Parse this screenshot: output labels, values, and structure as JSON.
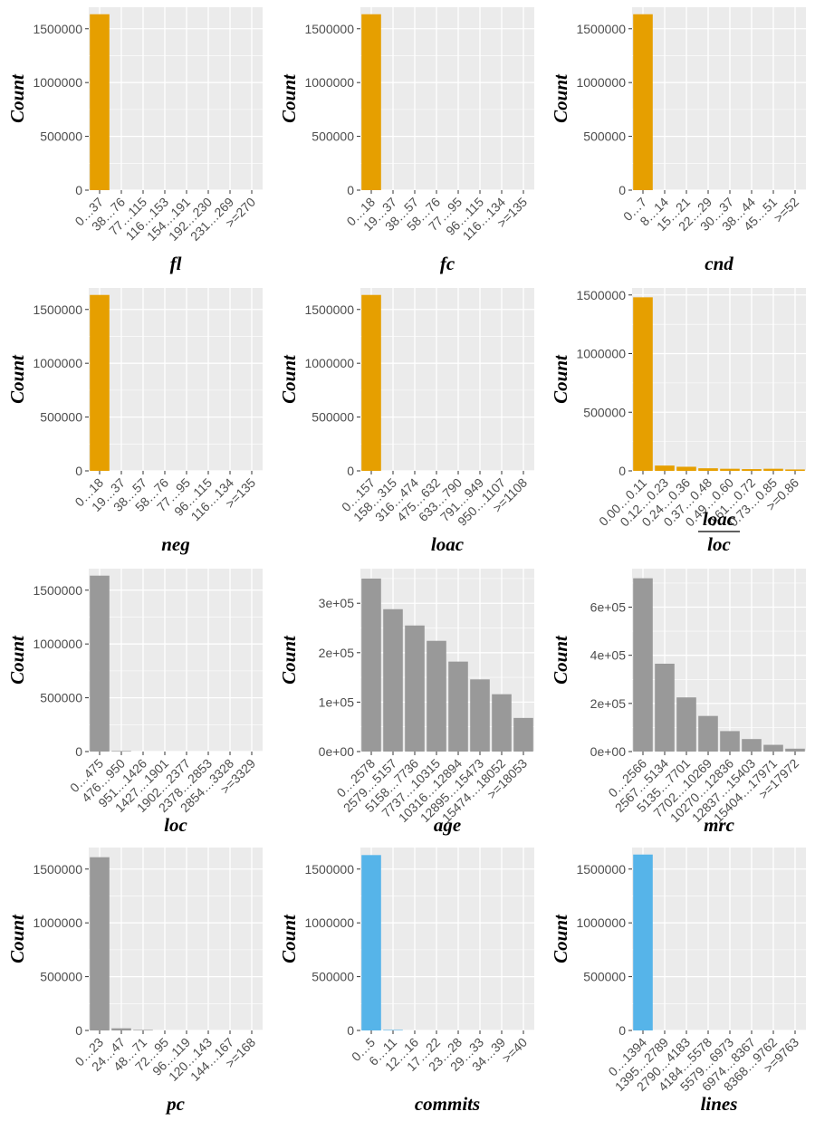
{
  "colors": {
    "orange": "#E69F00",
    "grey": "#999999",
    "blue": "#56B4E9",
    "panel_bg": "#EBEBEB",
    "grid": "#FFFFFF"
  },
  "chart_data": [
    {
      "type": "bar",
      "xlabel": "fl",
      "ylabel": "Count",
      "color": "#E69F00",
      "categories": [
        "0…37",
        "38…76",
        "77…115",
        "116…153",
        "154…191",
        "192…230",
        "231…269",
        ">=270"
      ],
      "values": [
        1635000,
        0,
        0,
        0,
        0,
        0,
        0,
        0
      ],
      "yticks": [
        0,
        500000,
        1000000,
        1500000
      ],
      "ytick_labels": [
        "0",
        "500000",
        "1000000",
        "1500000"
      ],
      "ylim": [
        0,
        1700000
      ]
    },
    {
      "type": "bar",
      "xlabel": "fc",
      "ylabel": "Count",
      "color": "#E69F00",
      "categories": [
        "0…18",
        "19…37",
        "38…57",
        "58…76",
        "77…95",
        "96…115",
        "116…134",
        ">=135"
      ],
      "values": [
        1635000,
        0,
        0,
        0,
        0,
        0,
        0,
        0
      ],
      "yticks": [
        0,
        500000,
        1000000,
        1500000
      ],
      "ytick_labels": [
        "0",
        "500000",
        "1000000",
        "1500000"
      ],
      "ylim": [
        0,
        1700000
      ]
    },
    {
      "type": "bar",
      "xlabel": "cnd",
      "ylabel": "Count",
      "color": "#E69F00",
      "categories": [
        "0…7",
        "8…14",
        "15…21",
        "22…29",
        "30…37",
        "38…44",
        "45…51",
        ">=52"
      ],
      "values": [
        1635000,
        0,
        0,
        0,
        0,
        0,
        0,
        0
      ],
      "yticks": [
        0,
        500000,
        1000000,
        1500000
      ],
      "ytick_labels": [
        "0",
        "500000",
        "1000000",
        "1500000"
      ],
      "ylim": [
        0,
        1700000
      ]
    },
    {
      "type": "bar",
      "xlabel": "neg",
      "ylabel": "Count",
      "color": "#E69F00",
      "categories": [
        "0…18",
        "19…37",
        "38…57",
        "58…76",
        "77…95",
        "96…115",
        "116…134",
        ">=135"
      ],
      "values": [
        1635000,
        0,
        0,
        0,
        0,
        0,
        0,
        0
      ],
      "yticks": [
        0,
        500000,
        1000000,
        1500000
      ],
      "ytick_labels": [
        "0",
        "500000",
        "1000000",
        "1500000"
      ],
      "ylim": [
        0,
        1700000
      ]
    },
    {
      "type": "bar",
      "xlabel": "loac",
      "ylabel": "Count",
      "color": "#E69F00",
      "categories": [
        "0…157",
        "158…315",
        "316…474",
        "475…632",
        "633…790",
        "791…949",
        "950…1107",
        ">=1108"
      ],
      "values": [
        1635000,
        0,
        0,
        0,
        0,
        0,
        0,
        0
      ],
      "yticks": [
        0,
        500000,
        1000000,
        1500000
      ],
      "ytick_labels": [
        "0",
        "500000",
        "1000000",
        "1500000"
      ],
      "ylim": [
        0,
        1700000
      ]
    },
    {
      "type": "bar",
      "xlabel": "loac / loc",
      "xlabel_num": "loac",
      "xlabel_den": "loc",
      "ylabel": "Count",
      "color": "#E69F00",
      "categories": [
        "0.00…0.11",
        "0.12…0.23",
        "0.24…0.36",
        "0.37…0.48",
        "0.49…0.60",
        "0.61…0.72",
        "0.73…0.85",
        ">=0.86"
      ],
      "values": [
        1480000,
        45000,
        35000,
        22000,
        18000,
        15000,
        18000,
        12000
      ],
      "yticks": [
        0,
        500000,
        1000000,
        1500000
      ],
      "ytick_labels": [
        "0",
        "500000",
        "1000000",
        "1500000"
      ],
      "ylim": [
        0,
        1560000
      ]
    },
    {
      "type": "bar",
      "xlabel": "loc",
      "ylabel": "Count",
      "color": "#999999",
      "categories": [
        "0…475",
        "476…950",
        "951…1426",
        "1427…1901",
        "1902…2377",
        "2378…2853",
        "2854…3328",
        ">=3329"
      ],
      "values": [
        1635000,
        5000,
        0,
        0,
        0,
        0,
        0,
        0
      ],
      "yticks": [
        0,
        500000,
        1000000,
        1500000
      ],
      "ytick_labels": [
        "0",
        "500000",
        "1000000",
        "1500000"
      ],
      "ylim": [
        0,
        1700000
      ]
    },
    {
      "type": "bar",
      "xlabel": "age",
      "ylabel": "Count",
      "color": "#999999",
      "categories": [
        "0…2578",
        "2579…5157",
        "5158…7736",
        "7737…10315",
        "10316…12894",
        "12895…15473",
        "15474…18052",
        ">=18053"
      ],
      "values": [
        350000,
        288000,
        255000,
        224000,
        182000,
        146000,
        116000,
        68000
      ],
      "yticks": [
        0,
        100000,
        200000,
        300000
      ],
      "ytick_labels": [
        "0e+00",
        "1e+05",
        "2e+05",
        "3e+05"
      ],
      "ylim": [
        0,
        370000
      ]
    },
    {
      "type": "bar",
      "xlabel": "mrc",
      "ylabel": "Count",
      "color": "#999999",
      "categories": [
        "0…2566",
        "2567…5134",
        "5135…7701",
        "7702…10269",
        "10270…12836",
        "12837…15403",
        "15404…17971",
        ">=17972"
      ],
      "values": [
        720000,
        365000,
        225000,
        148000,
        85000,
        52000,
        28000,
        12000
      ],
      "yticks": [
        0,
        200000,
        400000,
        600000
      ],
      "ytick_labels": [
        "0e+00",
        "2e+05",
        "4e+05",
        "6e+05"
      ],
      "ylim": [
        0,
        760000
      ]
    },
    {
      "type": "bar",
      "xlabel": "pc",
      "ylabel": "Count",
      "color": "#999999",
      "categories": [
        "0…23",
        "24…47",
        "48…71",
        "72…95",
        "96…119",
        "120…143",
        "144…167",
        ">=168"
      ],
      "values": [
        1610000,
        20000,
        5000,
        0,
        0,
        0,
        0,
        0
      ],
      "yticks": [
        0,
        500000,
        1000000,
        1500000
      ],
      "ytick_labels": [
        "0",
        "500000",
        "1000000",
        "1500000"
      ],
      "ylim": [
        0,
        1700000
      ]
    },
    {
      "type": "bar",
      "xlabel": "commits",
      "ylabel": "Count",
      "color": "#56B4E9",
      "categories": [
        "0…5",
        "6…11",
        "12…16",
        "17…22",
        "23…28",
        "29…33",
        "34…39",
        ">=40"
      ],
      "values": [
        1630000,
        5000,
        0,
        0,
        0,
        0,
        0,
        0
      ],
      "yticks": [
        0,
        500000,
        1000000,
        1500000
      ],
      "ytick_labels": [
        "0",
        "500000",
        "1000000",
        "1500000"
      ],
      "ylim": [
        0,
        1700000
      ]
    },
    {
      "type": "bar",
      "xlabel": "lines",
      "ylabel": "Count",
      "color": "#56B4E9",
      "categories": [
        "0…1394",
        "1395…2789",
        "2790…4183",
        "4184…5578",
        "5579…6973",
        "6974…8367",
        "8368…9762",
        ">=9763"
      ],
      "values": [
        1635000,
        0,
        0,
        0,
        0,
        0,
        0,
        0
      ],
      "yticks": [
        0,
        500000,
        1000000,
        1500000
      ],
      "ytick_labels": [
        "0",
        "500000",
        "1000000",
        "1500000"
      ],
      "ylim": [
        0,
        1700000
      ]
    }
  ]
}
